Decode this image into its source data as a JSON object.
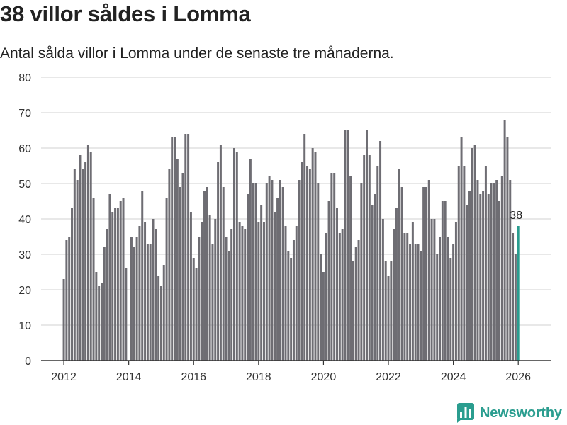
{
  "header": {
    "title": "38 villor såldes i Lomma",
    "subtitle": "Antal sålda villor i Lomma under de senaste tre månaderna."
  },
  "brand": {
    "name": "Newsworthy",
    "icon": "bar-chart-logo-icon",
    "color": "#2a9d8f"
  },
  "colors": {
    "bar": "#6e6d73",
    "highlight": "#2a9d8f",
    "grid": "#e0e0e0",
    "axis": "#333333"
  },
  "chart_data": {
    "type": "bar",
    "title": "38 villor såldes i Lomma",
    "xlabel": "",
    "ylabel": "",
    "ylim": [
      0,
      80
    ],
    "yticks": [
      0,
      10,
      20,
      30,
      40,
      50,
      60,
      70,
      80
    ],
    "xlim": [
      2011.3,
      2027.0
    ],
    "xticks": [
      2012,
      2014,
      2016,
      2018,
      2020,
      2022,
      2024,
      2026
    ],
    "start": {
      "year": 2012,
      "month": 1
    },
    "values": [
      23,
      34,
      35,
      43,
      54,
      51,
      58,
      54,
      56,
      61,
      59,
      46,
      25,
      21,
      22,
      32,
      37,
      47,
      42,
      43,
      43,
      45,
      46,
      26,
      null,
      35,
      32,
      35,
      38,
      48,
      39,
      33,
      33,
      40,
      37,
      24,
      21,
      27,
      46,
      54,
      63,
      63,
      57,
      49,
      53,
      64,
      64,
      42,
      29,
      26,
      35,
      39,
      48,
      49,
      41,
      33,
      40,
      56,
      61,
      49,
      35,
      31,
      37,
      60,
      59,
      39,
      38,
      37,
      47,
      57,
      50,
      50,
      39,
      44,
      39,
      50,
      52,
      51,
      42,
      46,
      51,
      49,
      38,
      31,
      29,
      34,
      38,
      51,
      56,
      64,
      55,
      54,
      60,
      59,
      50,
      30,
      25,
      36,
      45,
      53,
      53,
      43,
      36,
      37,
      65,
      65,
      52,
      28,
      32,
      34,
      50,
      58,
      65,
      58,
      44,
      47,
      55,
      62,
      40,
      28,
      24,
      28,
      37,
      43,
      54,
      49,
      36,
      36,
      33,
      39,
      33,
      33,
      31,
      49,
      49,
      51,
      40,
      40,
      30,
      35,
      45,
      45,
      35,
      29,
      33,
      39,
      55,
      63,
      55,
      44,
      48,
      60,
      61,
      51,
      47,
      48,
      55,
      47,
      50,
      50,
      51,
      45,
      52,
      68,
      63,
      51,
      36,
      30,
      38
    ],
    "highlight_last": true,
    "annotation": {
      "text": "38",
      "target": "last"
    }
  }
}
